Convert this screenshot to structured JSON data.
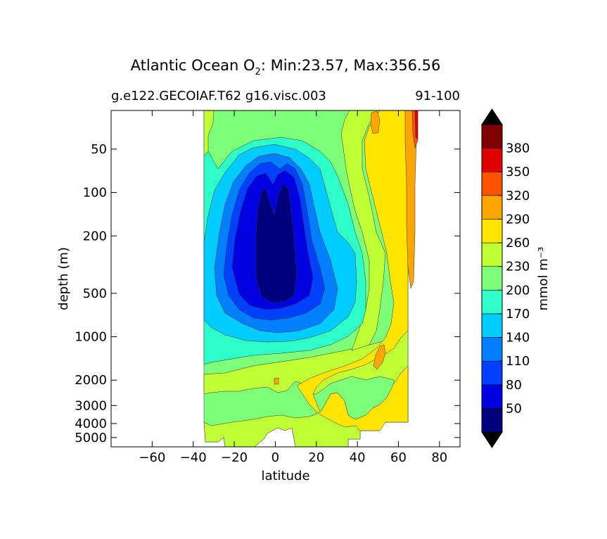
{
  "chart_data": {
    "type": "heatmap",
    "title_main": "Atlantic Ocean O",
    "title_sub": "2",
    "title_rest": ": Min:23.57, Max:356.56",
    "subtitle_left": "g.e122.GECOIAF.T62 g16.visc.003",
    "subtitle_right": "91-100",
    "xlabel": "latitude",
    "ylabel": "depth (m)",
    "xlim": [
      -80,
      90
    ],
    "x_ticks": [
      -60,
      -40,
      -20,
      0,
      20,
      40,
      60,
      80
    ],
    "x_tick_labels": [
      "−60",
      "−40",
      "−20",
      "0",
      "20",
      "40",
      "60",
      "80"
    ],
    "y_scale": "log",
    "y_inverted": true,
    "y_ticks": [
      50,
      100,
      200,
      500,
      1000,
      2000,
      3000,
      4000,
      5000
    ],
    "y_tick_labels": [
      "50",
      "100",
      "200",
      "500",
      "1000",
      "2000",
      "3000",
      "4000",
      "5000"
    ],
    "colorbar": {
      "label": "mmol m⁻³",
      "extend": "both",
      "levels": [
        20,
        50,
        80,
        110,
        140,
        170,
        200,
        230,
        260,
        290,
        320,
        350,
        380,
        410
      ],
      "tick_values": [
        50,
        80,
        110,
        140,
        170,
        200,
        230,
        260,
        290,
        320,
        350,
        380
      ],
      "tick_labels": [
        "50",
        "80",
        "110",
        "140",
        "170",
        "200",
        "230",
        "260",
        "290",
        "320",
        "350",
        "380"
      ],
      "colors": [
        "#00007f",
        "#0000e0",
        "#0040ff",
        "#0080ff",
        "#00ccff",
        "#2effc8",
        "#7dff7a",
        "#c0ff36",
        "#ffe500",
        "#ffa500",
        "#ff5200",
        "#e00000",
        "#7f0000"
      ],
      "under_color": "#000000",
      "over_color": "#000000"
    },
    "field": {
      "background_value": 215,
      "description_values": {
        "min": 23.57,
        "max": 356.56
      }
    }
  }
}
